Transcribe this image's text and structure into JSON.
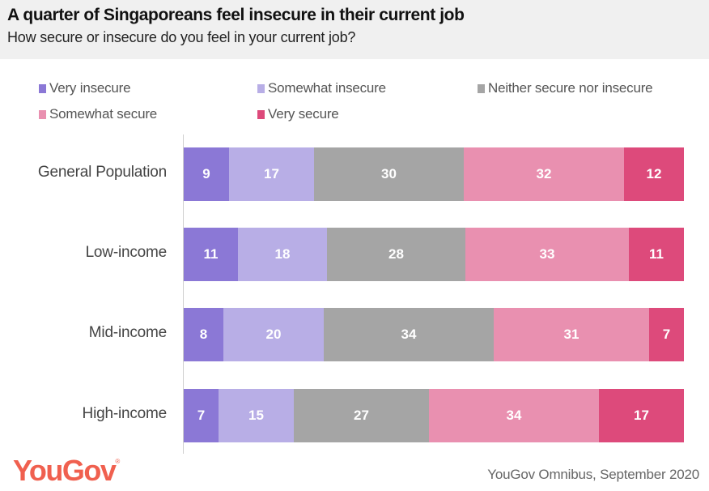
{
  "header": {
    "title": "A quarter of Singaporeans feel insecure in their current job",
    "subtitle": "How secure or insecure do you feel in your current job?"
  },
  "footer": {
    "logo": "YouGov",
    "logo_mark": "®",
    "source": "YouGov Omnibus, September 2020"
  },
  "chart_data": {
    "type": "bar",
    "orientation": "horizontal",
    "stacked": true,
    "title": "A quarter of Singaporeans feel insecure in their current job",
    "subtitle": "How secure or insecure do you feel in your current job?",
    "xlabel": "",
    "ylabel": "",
    "unit": "%",
    "legend_position": "top",
    "grid": false,
    "categories": [
      "General Population",
      "Low-income",
      "Mid-income",
      "High-income"
    ],
    "series": [
      {
        "name": "Very insecure",
        "color": "#8b78d6",
        "values": [
          9,
          11,
          8,
          7
        ]
      },
      {
        "name": "Somewhat insecure",
        "color": "#b8aee6",
        "values": [
          17,
          18,
          20,
          15
        ]
      },
      {
        "name": "Neither secure nor insecure",
        "color": "#a5a5a5",
        "values": [
          30,
          28,
          34,
          27
        ]
      },
      {
        "name": "Somewhat secure",
        "color": "#e990b0",
        "values": [
          32,
          33,
          31,
          34
        ]
      },
      {
        "name": "Very secure",
        "color": "#dd4a7b",
        "values": [
          12,
          11,
          7,
          17
        ]
      }
    ],
    "source": "YouGov Omnibus, September 2020"
  }
}
